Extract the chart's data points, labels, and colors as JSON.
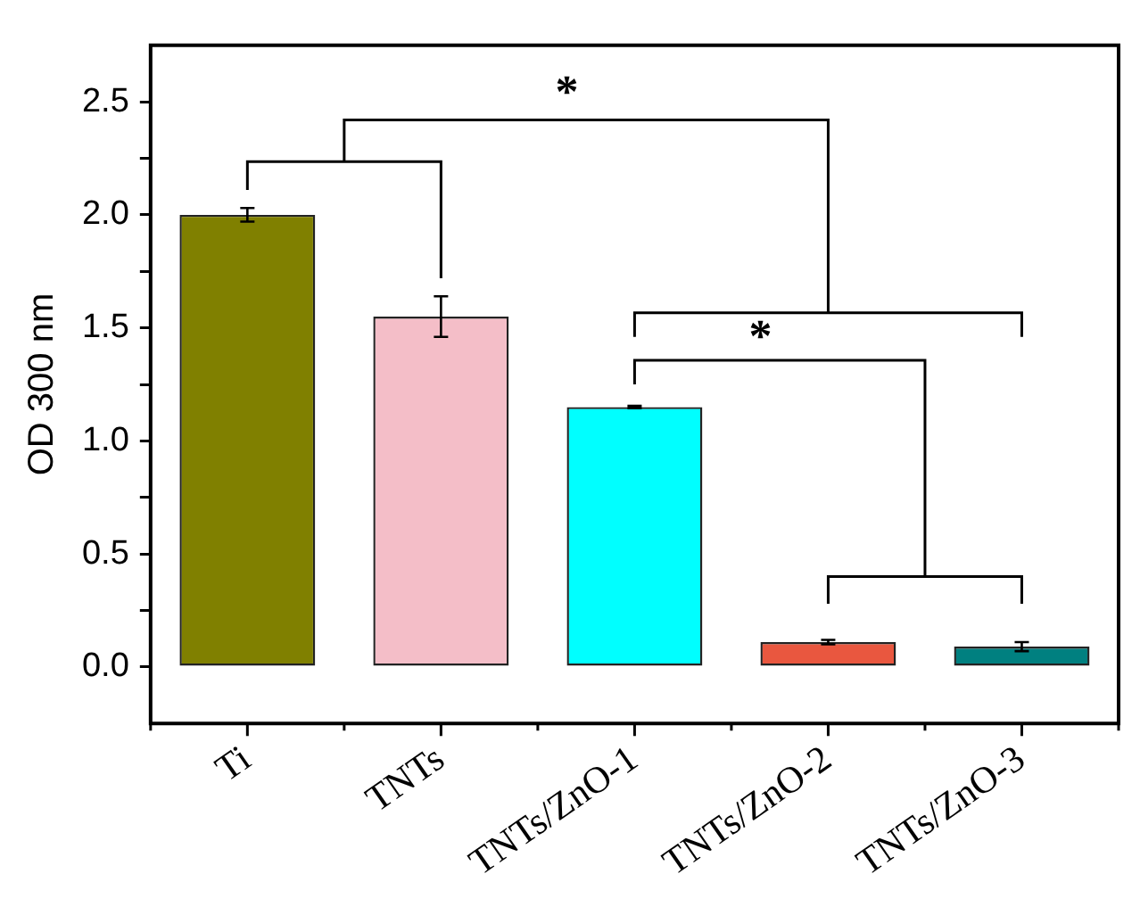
{
  "chart_data": {
    "type": "bar",
    "ylabel": "OD 300 nm",
    "categories": [
      "Ti",
      "TNTs",
      "TNTs/ZnO-1",
      "TNTs/ZnO-2",
      "TNTs/ZnO-3"
    ],
    "values": [
      2.0,
      1.55,
      1.15,
      0.11,
      0.09
    ],
    "errors": [
      0.03,
      0.09,
      0.005,
      0.01,
      0.02
    ],
    "colors": [
      "#808000",
      "#f4bec8",
      "#00ffff",
      "#e9573f",
      "#008080"
    ],
    "ylim": [
      -0.25,
      2.75
    ],
    "yticks": [
      {
        "value": 0,
        "label": "0.0"
      },
      {
        "value": 0.25,
        "label": null
      },
      0.5,
      {
        "value": 0.75,
        "label": null
      },
      {
        "value": 1,
        "label": "1.0"
      },
      {
        "value": 1.25,
        "label": null
      },
      1.5,
      {
        "value": 1.75,
        "label": null
      },
      {
        "value": 2,
        "label": "2.0"
      },
      {
        "value": 2.25,
        "label": null
      },
      2.5
    ],
    "annotations": [
      "*",
      "*"
    ],
    "grid": false,
    "legend": false
  }
}
